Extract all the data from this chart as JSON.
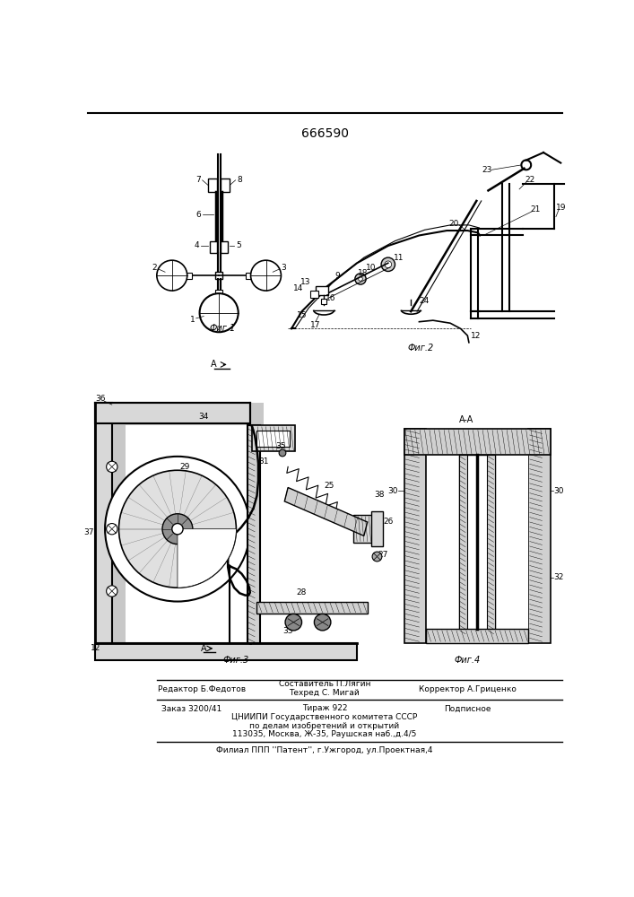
{
  "patent_number": "666590",
  "background_color": "#ffffff",
  "fig_width": 7.07,
  "fig_height": 10.0,
  "footer_label1": "Редактор Б.Федотов",
  "footer_label2": "Составитель П.Лягин",
  "footer_label2b": "Техред С. Мигай",
  "footer_label3": "Корректор А.Гриценко",
  "footer_order": "Заказ 3200/41",
  "footer_tirazh": "Тираж 922",
  "footer_podp": "Подписное",
  "footer_line3": "ЦНИИПИ Государственного комитета СССР",
  "footer_line4": "по делам изобретений и открытий",
  "footer_line5": "113035, Москва, Ж-35, Раушская наб.,д.4/5",
  "footer_line6": "Филиал ППП ''Патент'', г.Ужгород, ул.Проектная,4"
}
